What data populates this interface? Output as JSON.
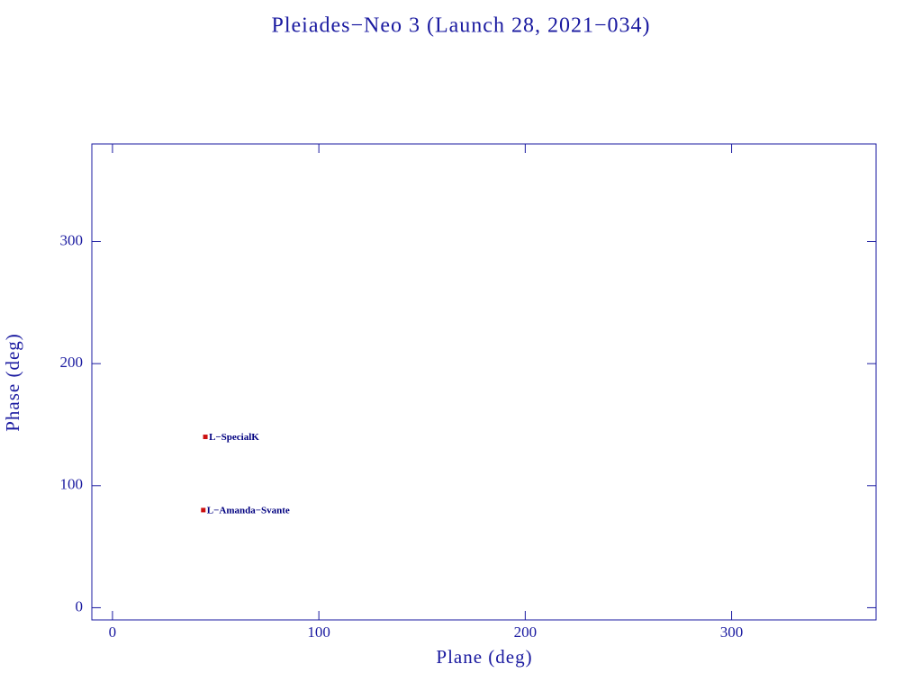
{
  "chart_data": {
    "type": "scatter",
    "title": "Pleiades−Neo 3 (Launch 28, 2021−034)",
    "x_label": "Plane (deg)",
    "y_label": "Phase (deg)",
    "xlim": [
      -10,
      370
    ],
    "ylim": [
      -10,
      380
    ],
    "xticks": [
      0,
      100,
      200,
      300
    ],
    "yticks": [
      0,
      100,
      200,
      300
    ],
    "series": [
      {
        "name": "L−SpecialK",
        "color": "#cc1111",
        "x": [
          45
        ],
        "values": [
          140
        ]
      },
      {
        "name": "L−Amanda−Svante",
        "color": "#cc1111",
        "x": [
          44
        ],
        "values": [
          80
        ]
      }
    ]
  }
}
